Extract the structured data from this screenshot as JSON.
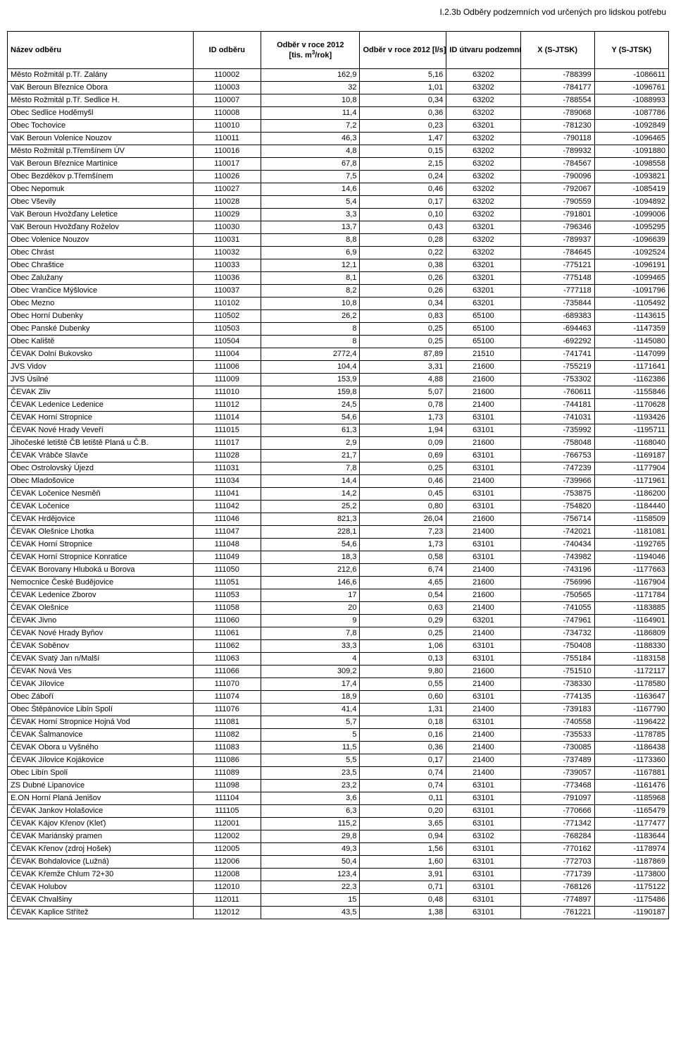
{
  "page_title": "I.2.3b Odběry podzemních vod určených pro lidskou potřebu",
  "headers": {
    "name": "Název odběru",
    "id": "ID odběru",
    "m3": "Odběr v roce 2012 [tis. m³/rok]",
    "ls": "Odběr v roce 2012 [l/s]",
    "utvar": "ID útvaru podzemních vod",
    "x": "X (S-JTSK)",
    "y": "Y (S-JTSK)"
  },
  "rows": [
    [
      "Město Rožmitál p.Tř. Zalány",
      "110002",
      "162,9",
      "5,16",
      "63202",
      "-788399",
      "-1086611"
    ],
    [
      "VaK Beroun Březnice Obora",
      "110003",
      "32",
      "1,01",
      "63202",
      "-784177",
      "-1096761"
    ],
    [
      "Město Rožmitál p.Tř. Sedlice H.",
      "110007",
      "10,8",
      "0,34",
      "63202",
      "-788554",
      "-1088993"
    ],
    [
      "Obec Sedlice Hoděmyšl",
      "110008",
      "11,4",
      "0,36",
      "63202",
      "-789068",
      "-1087786"
    ],
    [
      "Obec Tochovice",
      "110010",
      "7,2",
      "0,23",
      "63201",
      "-781230",
      "-1092849"
    ],
    [
      "VaK Beroun Volenice Nouzov",
      "110011",
      "46,3",
      "1,47",
      "63202",
      "-790118",
      "-1096465"
    ],
    [
      "Město Rožmitál p.Třemšínem ÚV",
      "110016",
      "4,8",
      "0,15",
      "63202",
      "-789932",
      "-1091880"
    ],
    [
      "VaK Beroun Březnice Martinice",
      "110017",
      "67,8",
      "2,15",
      "63202",
      "-784567",
      "-1098558"
    ],
    [
      "Obec Bezděkov p.Třemšínem",
      "110026",
      "7,5",
      "0,24",
      "63202",
      "-790096",
      "-1093821"
    ],
    [
      "Obec Nepomuk",
      "110027",
      "14,6",
      "0,46",
      "63202",
      "-792067",
      "-1085419"
    ],
    [
      "Obec Vševily",
      "110028",
      "5,4",
      "0,17",
      "63202",
      "-790559",
      "-1094892"
    ],
    [
      "VaK Beroun Hvožďany Leletice",
      "110029",
      "3,3",
      "0,10",
      "63202",
      "-791801",
      "-1099006"
    ],
    [
      "VaK Beroun Hvožďany Roželov",
      "110030",
      "13,7",
      "0,43",
      "63201",
      "-796346",
      "-1095295"
    ],
    [
      "Obec Volenice Nouzov",
      "110031",
      "8,8",
      "0,28",
      "63202",
      "-789937",
      "-1096639"
    ],
    [
      "Obec Chrást",
      "110032",
      "6,9",
      "0,22",
      "63202",
      "-784645",
      "-1092524"
    ],
    [
      "Obec Chraštice",
      "110033",
      "12,1",
      "0,38",
      "63201",
      "-775121",
      "-1096191"
    ],
    [
      "Obec Zalužany",
      "110036",
      "8,1",
      "0,26",
      "63201",
      "-775148",
      "-1099465"
    ],
    [
      "Obec Vrančice Mýšlovice",
      "110037",
      "8,2",
      "0,26",
      "63201",
      "-777118",
      "-1091796"
    ],
    [
      "Obec Mezno",
      "110102",
      "10,8",
      "0,34",
      "63201",
      "-735844",
      "-1105492"
    ],
    [
      "Obec Horní Dubenky",
      "110502",
      "26,2",
      "0,83",
      "65100",
      "-689383",
      "-1143615"
    ],
    [
      "Obec Panské Dubenky",
      "110503",
      "8",
      "0,25",
      "65100",
      "-694463",
      "-1147359"
    ],
    [
      "Obec Kaliště",
      "110504",
      "8",
      "0,25",
      "65100",
      "-692292",
      "-1145080"
    ],
    [
      "ČEVAK Dolní Bukovsko",
      "111004",
      "2772,4",
      "87,89",
      "21510",
      "-741741",
      "-1147099"
    ],
    [
      "JVS Vidov",
      "111006",
      "104,4",
      "3,31",
      "21600",
      "-755219",
      "-1171641"
    ],
    [
      "JVS Úsilné",
      "111009",
      "153,9",
      "4,88",
      "21600",
      "-753302",
      "-1162386"
    ],
    [
      "ČEVAK Zliv",
      "111010",
      "159,8",
      "5,07",
      "21600",
      "-760611",
      "-1155846"
    ],
    [
      "ČEVAK Ledenice Ledenice",
      "111012",
      "24,5",
      "0,78",
      "21400",
      "-744181",
      "-1170628"
    ],
    [
      "ČEVAK Horní Stropnice",
      "111014",
      "54,6",
      "1,73",
      "63101",
      "-741031",
      "-1193426"
    ],
    [
      "ČEVAK Nové Hrady Veveří",
      "111015",
      "61,3",
      "1,94",
      "63101",
      "-735992",
      "-1195711"
    ],
    [
      "Jihočeské letiště ČB letiště Planá u Č.B.",
      "111017",
      "2,9",
      "0,09",
      "21600",
      "-758048",
      "-1168040"
    ],
    [
      "ČEVAK Vrábče Slavče",
      "111028",
      "21,7",
      "0,69",
      "63101",
      "-766753",
      "-1169187"
    ],
    [
      "Obec Ostrolovský Újezd",
      "111031",
      "7,8",
      "0,25",
      "63101",
      "-747239",
      "-1177904"
    ],
    [
      "Obec Mladošovice",
      "111034",
      "14,4",
      "0,46",
      "21400",
      "-739966",
      "-1171961"
    ],
    [
      "ČEVAK Ločenice Nesměň",
      "111041",
      "14,2",
      "0,45",
      "63101",
      "-753875",
      "-1186200"
    ],
    [
      "ČEVAK Ločenice",
      "111042",
      "25,2",
      "0,80",
      "63101",
      "-754820",
      "-1184440"
    ],
    [
      "ČEVAK Hrdějovice",
      "111046",
      "821,3",
      "26,04",
      "21600",
      "-756714",
      "-1158509"
    ],
    [
      "ČEVAK Olešnice Lhotka",
      "111047",
      "228,1",
      "7,23",
      "21400",
      "-742021",
      "-1181081"
    ],
    [
      "ČEVAK Horní Stropnice",
      "111048",
      "54,6",
      "1,73",
      "63101",
      "-740434",
      "-1192765"
    ],
    [
      "ČEVAK Horní Stropnice Konratice",
      "111049",
      "18,3",
      "0,58",
      "63101",
      "-743982",
      "-1194046"
    ],
    [
      "ČEVAK Borovany Hluboká u Borova",
      "111050",
      "212,6",
      "6,74",
      "21400",
      "-743196",
      "-1177663"
    ],
    [
      "Nemocnice České Budějovice",
      "111051",
      "146,6",
      "4,65",
      "21600",
      "-756996",
      "-1167904"
    ],
    [
      "ČEVAK Ledenice Zborov",
      "111053",
      "17",
      "0,54",
      "21600",
      "-750565",
      "-1171784"
    ],
    [
      "ČEVAK Olešnice",
      "111058",
      "20",
      "0,63",
      "21400",
      "-741055",
      "-1183885"
    ],
    [
      "ČEVAK Jivno",
      "111060",
      "9",
      "0,29",
      "63201",
      "-747961",
      "-1164901"
    ],
    [
      "ČEVAK Nové Hrady Byňov",
      "111061",
      "7,8",
      "0,25",
      "21400",
      "-734732",
      "-1186809"
    ],
    [
      "ČEVAK Soběnov",
      "111062",
      "33,3",
      "1,06",
      "63101",
      "-750408",
      "-1188330"
    ],
    [
      "ČEVAK Svatý Jan n/Malší",
      "111063",
      "4",
      "0,13",
      "63101",
      "-755184",
      "-1183158"
    ],
    [
      "ČEVAK Nová Ves",
      "111066",
      "309,2",
      "9,80",
      "21600",
      "-751510",
      "-1172117"
    ],
    [
      "ČEVAK Jílovice",
      "111070",
      "17,4",
      "0,55",
      "21400",
      "-738330",
      "-1178580"
    ],
    [
      "Obec Záboří",
      "111074",
      "18,9",
      "0,60",
      "63101",
      "-774135",
      "-1163647"
    ],
    [
      "Obec Štěpánovice Libín Spolí",
      "111076",
      "41,4",
      "1,31",
      "21400",
      "-739183",
      "-1167790"
    ],
    [
      "ČEVAK Horní Stropnice Hojná Vod",
      "111081",
      "5,7",
      "0,18",
      "63101",
      "-740558",
      "-1196422"
    ],
    [
      "ČEVAK Šalmanovice",
      "111082",
      "5",
      "0,16",
      "21400",
      "-735533",
      "-1178785"
    ],
    [
      "ČEVAK Obora u Vyšného",
      "111083",
      "11,5",
      "0,36",
      "21400",
      "-730085",
      "-1186438"
    ],
    [
      "ČEVAK Jílovice Kojákovice",
      "111086",
      "5,5",
      "0,17",
      "21400",
      "-737489",
      "-1173360"
    ],
    [
      "Obec Libín Spolí",
      "111089",
      "23,5",
      "0,74",
      "21400",
      "-739057",
      "-1167881"
    ],
    [
      "ZS Dubné Lipanovice",
      "111098",
      "23,2",
      "0,74",
      "63101",
      "-773468",
      "-1161476"
    ],
    [
      "E.ON Horní Planá Jenišov",
      "111104",
      "3,6",
      "0,11",
      "63101",
      "-791097",
      "-1185968"
    ],
    [
      "ČEVAK Jankov Holašovice",
      "111105",
      "6,3",
      "0,20",
      "63101",
      "-770666",
      "-1165479"
    ],
    [
      "ČEVAK Kájov Křenov (Kleť)",
      "112001",
      "115,2",
      "3,65",
      "63101",
      "-771342",
      "-1177477"
    ],
    [
      "ČEVAK Mariánský pramen",
      "112002",
      "29,8",
      "0,94",
      "63102",
      "-768284",
      "-1183644"
    ],
    [
      "ČEVAK Křenov (zdroj Hošek)",
      "112005",
      "49,3",
      "1,56",
      "63101",
      "-770162",
      "-1178974"
    ],
    [
      "ČEVAK Bohdalovice (Lužná)",
      "112006",
      "50,4",
      "1,60",
      "63101",
      "-772703",
      "-1187869"
    ],
    [
      "ČEVAK Křemže Chlum 72+30",
      "112008",
      "123,4",
      "3,91",
      "63101",
      "-771739",
      "-1173800"
    ],
    [
      "ČEVAK Holubov",
      "112010",
      "22,3",
      "0,71",
      "63101",
      "-768126",
      "-1175122"
    ],
    [
      "ČEVAK Chvalšiny",
      "112011",
      "15",
      "0,48",
      "63101",
      "-774897",
      "-1175486"
    ],
    [
      "ČEVAK Kaplice Střítež",
      "112012",
      "43,5",
      "1,38",
      "63101",
      "-761221",
      "-1190187"
    ]
  ]
}
